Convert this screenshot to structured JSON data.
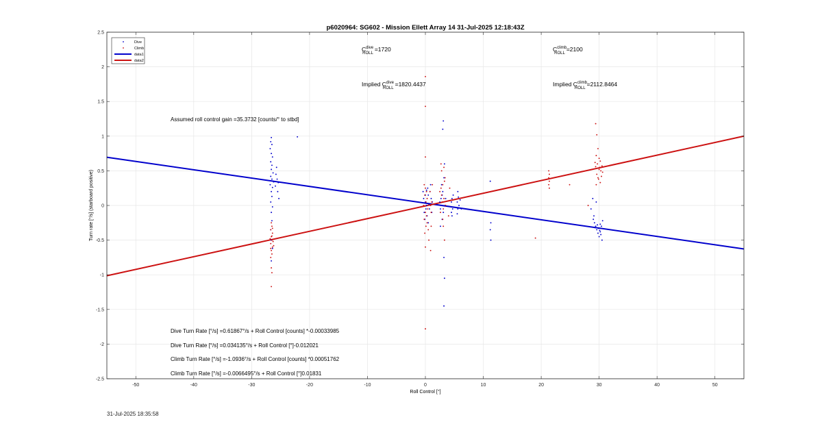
{
  "timestamp": "31-Jul-2025 18:35:58",
  "colors": {
    "dive": "#0000cc",
    "climb": "#cc1111",
    "grid": "#e6e6e6",
    "axis": "#262626"
  },
  "chart_data": {
    "type": "scatter",
    "title": "p6020964: SG602 - Mission Ellett Array 14 31-Jul-2025 12:18:43Z",
    "xlabel": "Roll Control [°]",
    "ylabel": "Turn rate [°/s] (starboard positive)",
    "xlim": [
      -55,
      55
    ],
    "ylim": [
      -2.5,
      2.5
    ],
    "xticks": [
      -50,
      -40,
      -30,
      -20,
      -10,
      0,
      10,
      20,
      30,
      40,
      50
    ],
    "yticks": [
      -2.5,
      -2,
      -1.5,
      -1,
      -0.5,
      0,
      0.5,
      1,
      1.5,
      2,
      2.5
    ],
    "grid": true,
    "legend_position": "top-left",
    "legend": [
      "Dive",
      "Climb",
      "data1",
      "data2"
    ],
    "annotations": {
      "c_dive": {
        "base": "C",
        "sup": "dive",
        "sub": "ROLL",
        "value": "=1720"
      },
      "c_climb": {
        "base": "C",
        "sup": "climb",
        "sub": "ROLL",
        "value": "=2100"
      },
      "implied_dive": {
        "prefix": "Implied C",
        "sup": "dive",
        "sub": "ROLL",
        "value": "=1820.4437"
      },
      "implied_climb": {
        "prefix": "Implied C",
        "sup": "climb",
        "sub": "ROLL",
        "value": "=2112.8464"
      },
      "gain": "Assumed roll control gain =35.3732 [counts/° to stbd]",
      "eq1": "Dive Turn Rate [°/s] =0.61867°/s + Roll Control [counts] *-0.00033985",
      "eq2": "Dive Turn Rate [°/s] =0.034135°/s + Roll Control [°]-0.012021",
      "eq3": "Climb Turn Rate [°/s] =-1.0936°/s + Roll Control [counts] *0.00051762",
      "eq4": "Climb Turn Rate [°/s] =-0.0066495°/s + Roll Control [°]0.01831"
    },
    "series": [
      {
        "name": "Dive",
        "kind": "scatter",
        "points": [
          [
            -26.6,
            0.98
          ],
          [
            -26.7,
            0.92
          ],
          [
            -26.5,
            0.88
          ],
          [
            -26.8,
            0.82
          ],
          [
            -26.6,
            0.75
          ],
          [
            -26.4,
            0.7
          ],
          [
            -26.7,
            0.63
          ],
          [
            -26.5,
            0.58
          ],
          [
            -26.6,
            0.52
          ],
          [
            -26.3,
            0.47
          ],
          [
            -26.7,
            0.42
          ],
          [
            -26.5,
            0.38
          ],
          [
            -26.2,
            0.34
          ],
          [
            -26.8,
            0.3
          ],
          [
            -26.4,
            0.26
          ],
          [
            -26.6,
            0.2
          ],
          [
            -26.5,
            0.13
          ],
          [
            -26.7,
            0.05
          ],
          [
            -26.4,
            -0.02
          ],
          [
            -26.6,
            -0.1
          ],
          [
            -26.5,
            -0.22
          ],
          [
            -26.7,
            -0.35
          ],
          [
            -26.6,
            -0.5
          ],
          [
            -26.4,
            -0.62
          ],
          [
            -26.6,
            -0.8
          ],
          [
            -25.8,
            0.45
          ],
          [
            -25.6,
            0.38
          ],
          [
            -25.4,
            0.33
          ],
          [
            -25.9,
            0.28
          ],
          [
            -25.5,
            0.2
          ],
          [
            -25.3,
            0.1
          ],
          [
            -25.7,
            0.55
          ],
          [
            -22.1,
            0.99
          ],
          [
            0.0,
            0.05
          ],
          [
            0.2,
            0.0
          ],
          [
            -0.3,
            0.1
          ],
          [
            0.5,
            0.15
          ],
          [
            0.1,
            -0.05
          ],
          [
            0.8,
            0.2
          ],
          [
            -0.2,
            -0.1
          ],
          [
            0.4,
            0.25
          ],
          [
            0.3,
            -0.15
          ],
          [
            0.6,
            0.02
          ],
          [
            1.0,
            0.1
          ],
          [
            1.2,
            0.05
          ],
          [
            0.7,
            -0.05
          ],
          [
            -0.4,
            0.2
          ],
          [
            0.9,
            0.3
          ],
          [
            0.5,
            -0.25
          ],
          [
            0.2,
            0.22
          ],
          [
            1.1,
            -0.1
          ],
          [
            0.0,
            0.15
          ],
          [
            -0.1,
            -0.2
          ],
          [
            2.5,
            0.05
          ],
          [
            2.7,
            0.1
          ],
          [
            2.9,
            0.15
          ],
          [
            2.6,
            -0.05
          ],
          [
            3.0,
            0.2
          ],
          [
            3.1,
            -0.1
          ],
          [
            2.8,
            0.3
          ],
          [
            3.2,
            0.4
          ],
          [
            2.9,
            -0.2
          ],
          [
            3.3,
            0.6
          ],
          [
            3.4,
            0.0
          ],
          [
            3.5,
            0.1
          ],
          [
            2.6,
            -0.3
          ],
          [
            3.1,
            1.22
          ],
          [
            3.0,
            1.1
          ],
          [
            3.2,
            -0.75
          ],
          [
            3.3,
            -1.05
          ],
          [
            3.2,
            -1.45
          ],
          [
            4.5,
            0.05
          ],
          [
            4.6,
            0.1
          ],
          [
            4.7,
            -0.05
          ],
          [
            4.5,
            -0.1
          ],
          [
            4.8,
            0.15
          ],
          [
            4.6,
            -0.15
          ],
          [
            5.5,
            0.05
          ],
          [
            5.6,
            -0.05
          ],
          [
            5.7,
            0.12
          ],
          [
            5.5,
            -0.12
          ],
          [
            5.8,
            0.0
          ],
          [
            5.6,
            0.2
          ],
          [
            6.2,
            -0.05
          ],
          [
            6.0,
            0.08
          ],
          [
            11.2,
            0.35
          ],
          [
            11.3,
            -0.25
          ],
          [
            11.2,
            -0.35
          ],
          [
            11.3,
            -0.5
          ],
          [
            29.0,
            -0.2
          ],
          [
            29.2,
            -0.25
          ],
          [
            29.4,
            -0.3
          ],
          [
            29.6,
            -0.35
          ],
          [
            29.8,
            -0.4
          ],
          [
            30.0,
            -0.45
          ],
          [
            30.2,
            -0.38
          ],
          [
            30.4,
            -0.3
          ],
          [
            30.6,
            -0.22
          ],
          [
            29.3,
            -0.32
          ],
          [
            29.7,
            -0.28
          ],
          [
            30.1,
            -0.36
          ],
          [
            30.3,
            -0.42
          ],
          [
            30.5,
            -0.5
          ],
          [
            29.1,
            -0.15
          ],
          [
            29.5,
            0.05
          ],
          [
            28.6,
            -0.05
          ],
          [
            29.9,
            -0.33
          ],
          [
            30.2,
            -0.27
          ],
          [
            28.9,
            0.1
          ]
        ]
      },
      {
        "name": "Climb",
        "kind": "scatter",
        "points": [
          [
            -26.6,
            -0.25
          ],
          [
            -26.5,
            -0.3
          ],
          [
            -26.7,
            -0.35
          ],
          [
            -26.4,
            -0.4
          ],
          [
            -26.6,
            -0.45
          ],
          [
            -26.5,
            -0.5
          ],
          [
            -26.7,
            -0.55
          ],
          [
            -26.4,
            -0.6
          ],
          [
            -26.6,
            -0.65
          ],
          [
            -26.5,
            -0.7
          ],
          [
            -26.7,
            -0.75
          ],
          [
            -26.6,
            -0.9
          ],
          [
            -26.5,
            -0.97
          ],
          [
            -26.6,
            -1.17
          ],
          [
            -26.3,
            -0.52
          ],
          [
            -26.8,
            -0.48
          ],
          [
            -26.2,
            -0.58
          ],
          [
            -26.4,
            -0.33
          ],
          [
            -26.7,
            -0.62
          ],
          [
            -26.5,
            -0.44
          ],
          [
            -12.0,
            -0.23
          ],
          [
            -0.2,
            0.3
          ],
          [
            0.0,
            0.25
          ],
          [
            0.2,
            0.2
          ],
          [
            -0.1,
            0.15
          ],
          [
            0.3,
            0.1
          ],
          [
            0.1,
            0.05
          ],
          [
            -0.3,
            0.0
          ],
          [
            0.4,
            -0.05
          ],
          [
            0.0,
            -0.1
          ],
          [
            0.2,
            -0.15
          ],
          [
            -0.2,
            -0.2
          ],
          [
            0.3,
            -0.25
          ],
          [
            0.1,
            -0.3
          ],
          [
            0.5,
            -0.35
          ],
          [
            -0.1,
            -0.4
          ],
          [
            0.6,
            -0.5
          ],
          [
            0.0,
            -0.6
          ],
          [
            0.0,
            0.7
          ],
          [
            0.0,
            1.43
          ],
          [
            0.0,
            1.86
          ],
          [
            0.0,
            -1.78
          ],
          [
            0.9,
            0.0
          ],
          [
            1.0,
            -0.1
          ],
          [
            1.1,
            0.05
          ],
          [
            0.9,
            -0.65
          ],
          [
            1.0,
            -0.3
          ],
          [
            0.8,
            0.2
          ],
          [
            1.2,
            0.3
          ],
          [
            2.5,
            0.2
          ],
          [
            2.7,
            0.25
          ],
          [
            2.8,
            0.15
          ],
          [
            3.0,
            0.3
          ],
          [
            3.2,
            0.1
          ],
          [
            2.9,
            0.05
          ],
          [
            3.1,
            -0.05
          ],
          [
            3.3,
            0.35
          ],
          [
            2.6,
            -0.1
          ],
          [
            3.0,
            -0.2
          ],
          [
            3.4,
            0.4
          ],
          [
            2.8,
            0.5
          ],
          [
            3.2,
            0.55
          ],
          [
            3.5,
            0.0
          ],
          [
            2.7,
            0.6
          ],
          [
            3.1,
            -0.3
          ],
          [
            3.3,
            -0.5
          ],
          [
            4.0,
            -0.15
          ],
          [
            4.2,
            0.25
          ],
          [
            19.0,
            -0.47
          ],
          [
            21.3,
            0.5
          ],
          [
            21.4,
            0.45
          ],
          [
            21.3,
            0.4
          ],
          [
            21.4,
            0.35
          ],
          [
            21.3,
            0.3
          ],
          [
            21.4,
            0.25
          ],
          [
            24.9,
            0.3
          ],
          [
            29.4,
            1.18
          ],
          [
            29.6,
            1.02
          ],
          [
            29.8,
            0.82
          ],
          [
            29.5,
            0.72
          ],
          [
            30.0,
            0.68
          ],
          [
            30.2,
            0.64
          ],
          [
            29.7,
            0.6
          ],
          [
            30.1,
            0.55
          ],
          [
            30.3,
            0.5
          ],
          [
            29.6,
            0.45
          ],
          [
            30.4,
            0.42
          ],
          [
            29.9,
            0.38
          ],
          [
            30.2,
            0.33
          ],
          [
            29.5,
            0.3
          ],
          [
            30.5,
            0.57
          ],
          [
            30.6,
            0.48
          ],
          [
            29.3,
            0.62
          ],
          [
            30.0,
            0.52
          ],
          [
            29.8,
            0.4
          ],
          [
            29.4,
            0.56
          ],
          [
            28.1,
            0.0
          ]
        ]
      },
      {
        "name": "data1",
        "kind": "line",
        "slope": -0.012021,
        "intercept": 0.034135
      },
      {
        "name": "data2",
        "kind": "line",
        "slope": 0.01831,
        "intercept": -0.0066495
      }
    ]
  }
}
